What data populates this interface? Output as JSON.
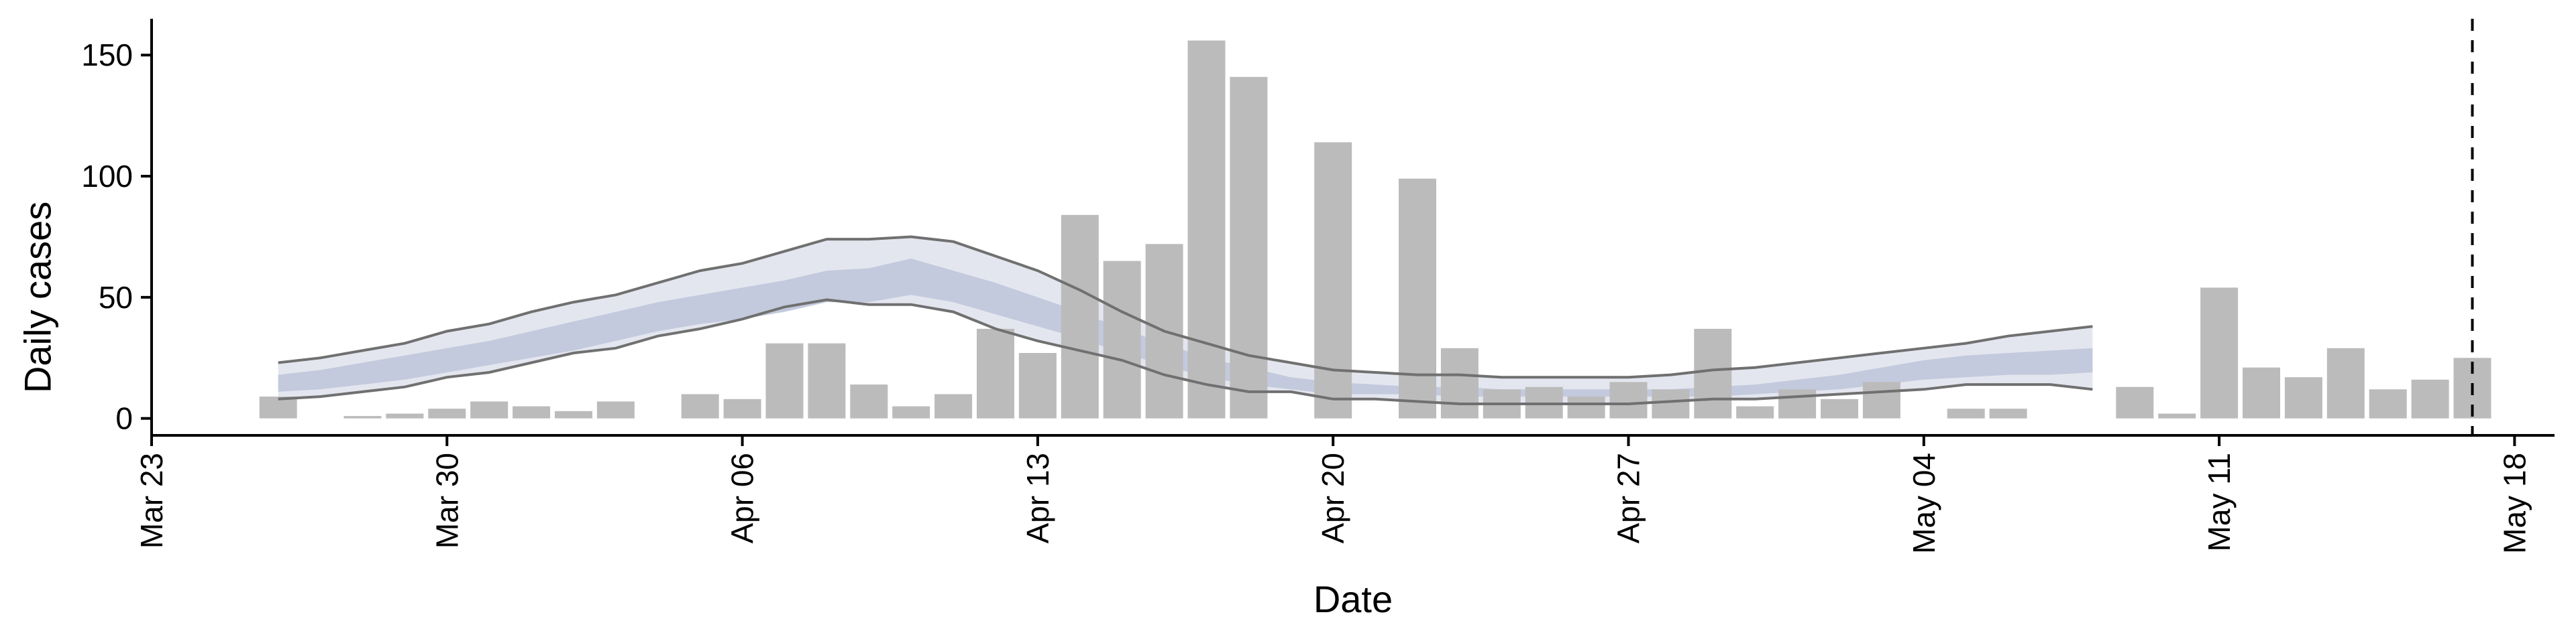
{
  "chart_data": {
    "type": "bar",
    "xlabel": "Date",
    "ylabel": "Daily cases",
    "xlim": [
      "2020-03-23",
      "2020-05-19"
    ],
    "ylim": [
      -7,
      165
    ],
    "x_ticks": [
      "Mar 23",
      "Mar 30",
      "Apr 06",
      "Apr 13",
      "Apr 20",
      "Apr 27",
      "May 04",
      "May 11",
      "May 18"
    ],
    "x_tick_dates": [
      "2020-03-23",
      "2020-03-30",
      "2020-04-06",
      "2020-04-13",
      "2020-04-20",
      "2020-04-27",
      "2020-05-04",
      "2020-05-11",
      "2020-05-18"
    ],
    "y_ticks": [
      "0",
      "50",
      "100",
      "150"
    ],
    "grid": false,
    "bars": {
      "dates": [
        "2020-03-26",
        "2020-03-27",
        "2020-03-28",
        "2020-03-29",
        "2020-03-30",
        "2020-03-31",
        "2020-04-01",
        "2020-04-02",
        "2020-04-03",
        "2020-04-04",
        "2020-04-05",
        "2020-04-06",
        "2020-04-07",
        "2020-04-08",
        "2020-04-09",
        "2020-04-10",
        "2020-04-11",
        "2020-04-12",
        "2020-04-13",
        "2020-04-14",
        "2020-04-15",
        "2020-04-16",
        "2020-04-17",
        "2020-04-18",
        "2020-04-19",
        "2020-04-20",
        "2020-04-21",
        "2020-04-22",
        "2020-04-23",
        "2020-04-24",
        "2020-04-25",
        "2020-04-26",
        "2020-04-27",
        "2020-04-28",
        "2020-04-29",
        "2020-04-30",
        "2020-05-01",
        "2020-05-02",
        "2020-05-03",
        "2020-05-04",
        "2020-05-05",
        "2020-05-06",
        "2020-05-07",
        "2020-05-08",
        "2020-05-09",
        "2020-05-10",
        "2020-05-11",
        "2020-05-12",
        "2020-05-13",
        "2020-05-14",
        "2020-05-15",
        "2020-05-16"
      ],
      "values": [
        9,
        0,
        1,
        2,
        4,
        7,
        5,
        3,
        7,
        0,
        10,
        8,
        31,
        31,
        14,
        5,
        10,
        37,
        27,
        84,
        65,
        72,
        156,
        141,
        0,
        114,
        0,
        99,
        29,
        12,
        13,
        9,
        15,
        12,
        37,
        5,
        12,
        8,
        15,
        0,
        4,
        4,
        0,
        0,
        13,
        2,
        54,
        21,
        17,
        29,
        12,
        16
      ]
    },
    "extra_bar": {
      "date": "2020-05-17",
      "value": 25
    },
    "estimate": {
      "dates": [
        "2020-03-26",
        "2020-03-27",
        "2020-03-28",
        "2020-03-29",
        "2020-03-30",
        "2020-03-31",
        "2020-04-01",
        "2020-04-02",
        "2020-04-03",
        "2020-04-04",
        "2020-04-05",
        "2020-04-06",
        "2020-04-07",
        "2020-04-08",
        "2020-04-09",
        "2020-04-10",
        "2020-04-11",
        "2020-04-12",
        "2020-04-13",
        "2020-04-14",
        "2020-04-15",
        "2020-04-16",
        "2020-04-17",
        "2020-04-18",
        "2020-04-19",
        "2020-04-20",
        "2020-04-21",
        "2020-04-22",
        "2020-04-23",
        "2020-04-24",
        "2020-04-25",
        "2020-04-26",
        "2020-04-27",
        "2020-04-28",
        "2020-04-29",
        "2020-04-30",
        "2020-05-01",
        "2020-05-02",
        "2020-05-03",
        "2020-05-04",
        "2020-05-05",
        "2020-05-06",
        "2020-05-07",
        "2020-05-08"
      ],
      "outer_upper": [
        23,
        25,
        28,
        31,
        36,
        39,
        44,
        48,
        51,
        56,
        61,
        64,
        69,
        74,
        74,
        75,
        73,
        67,
        61,
        53,
        44,
        36,
        31,
        26,
        23,
        20,
        19,
        18,
        18,
        17,
        17,
        17,
        17,
        18,
        20,
        21,
        23,
        25,
        27,
        29,
        31,
        34,
        36,
        38
      ],
      "outer_lower": [
        8,
        9,
        11,
        13,
        17,
        19,
        23,
        27,
        29,
        34,
        37,
        41,
        46,
        49,
        47,
        47,
        44,
        37,
        32,
        28,
        24,
        18,
        14,
        11,
        11,
        8,
        8,
        7,
        6,
        6,
        6,
        6,
        6,
        7,
        8,
        8,
        9,
        10,
        11,
        12,
        14,
        14,
        14,
        12
      ],
      "inner_upper": [
        18,
        20,
        23,
        26,
        29,
        32,
        36,
        40,
        44,
        48,
        51,
        54,
        57,
        61,
        62,
        66,
        61,
        56,
        50,
        44,
        37,
        31,
        25,
        21,
        17,
        15,
        14,
        13,
        13,
        12,
        12,
        12,
        12,
        12,
        13,
        14,
        16,
        18,
        21,
        24,
        26,
        27,
        28,
        29
      ],
      "inner_lower": [
        11,
        12,
        14,
        16,
        19,
        22,
        25,
        28,
        32,
        36,
        39,
        41,
        44,
        48,
        48,
        51,
        48,
        43,
        38,
        33,
        27,
        22,
        17,
        14,
        12,
        10,
        10,
        10,
        9,
        9,
        9,
        9,
        9,
        9,
        9,
        10,
        11,
        12,
        14,
        16,
        17,
        18,
        18,
        19
      ]
    },
    "vline_date": "2020-05-17",
    "colors": {
      "bar": "#bbbbbb",
      "outer_band": "#e4e6ef",
      "inner_band": "#c3cadd",
      "band_edge": "#707070",
      "axis": "#000000"
    }
  }
}
